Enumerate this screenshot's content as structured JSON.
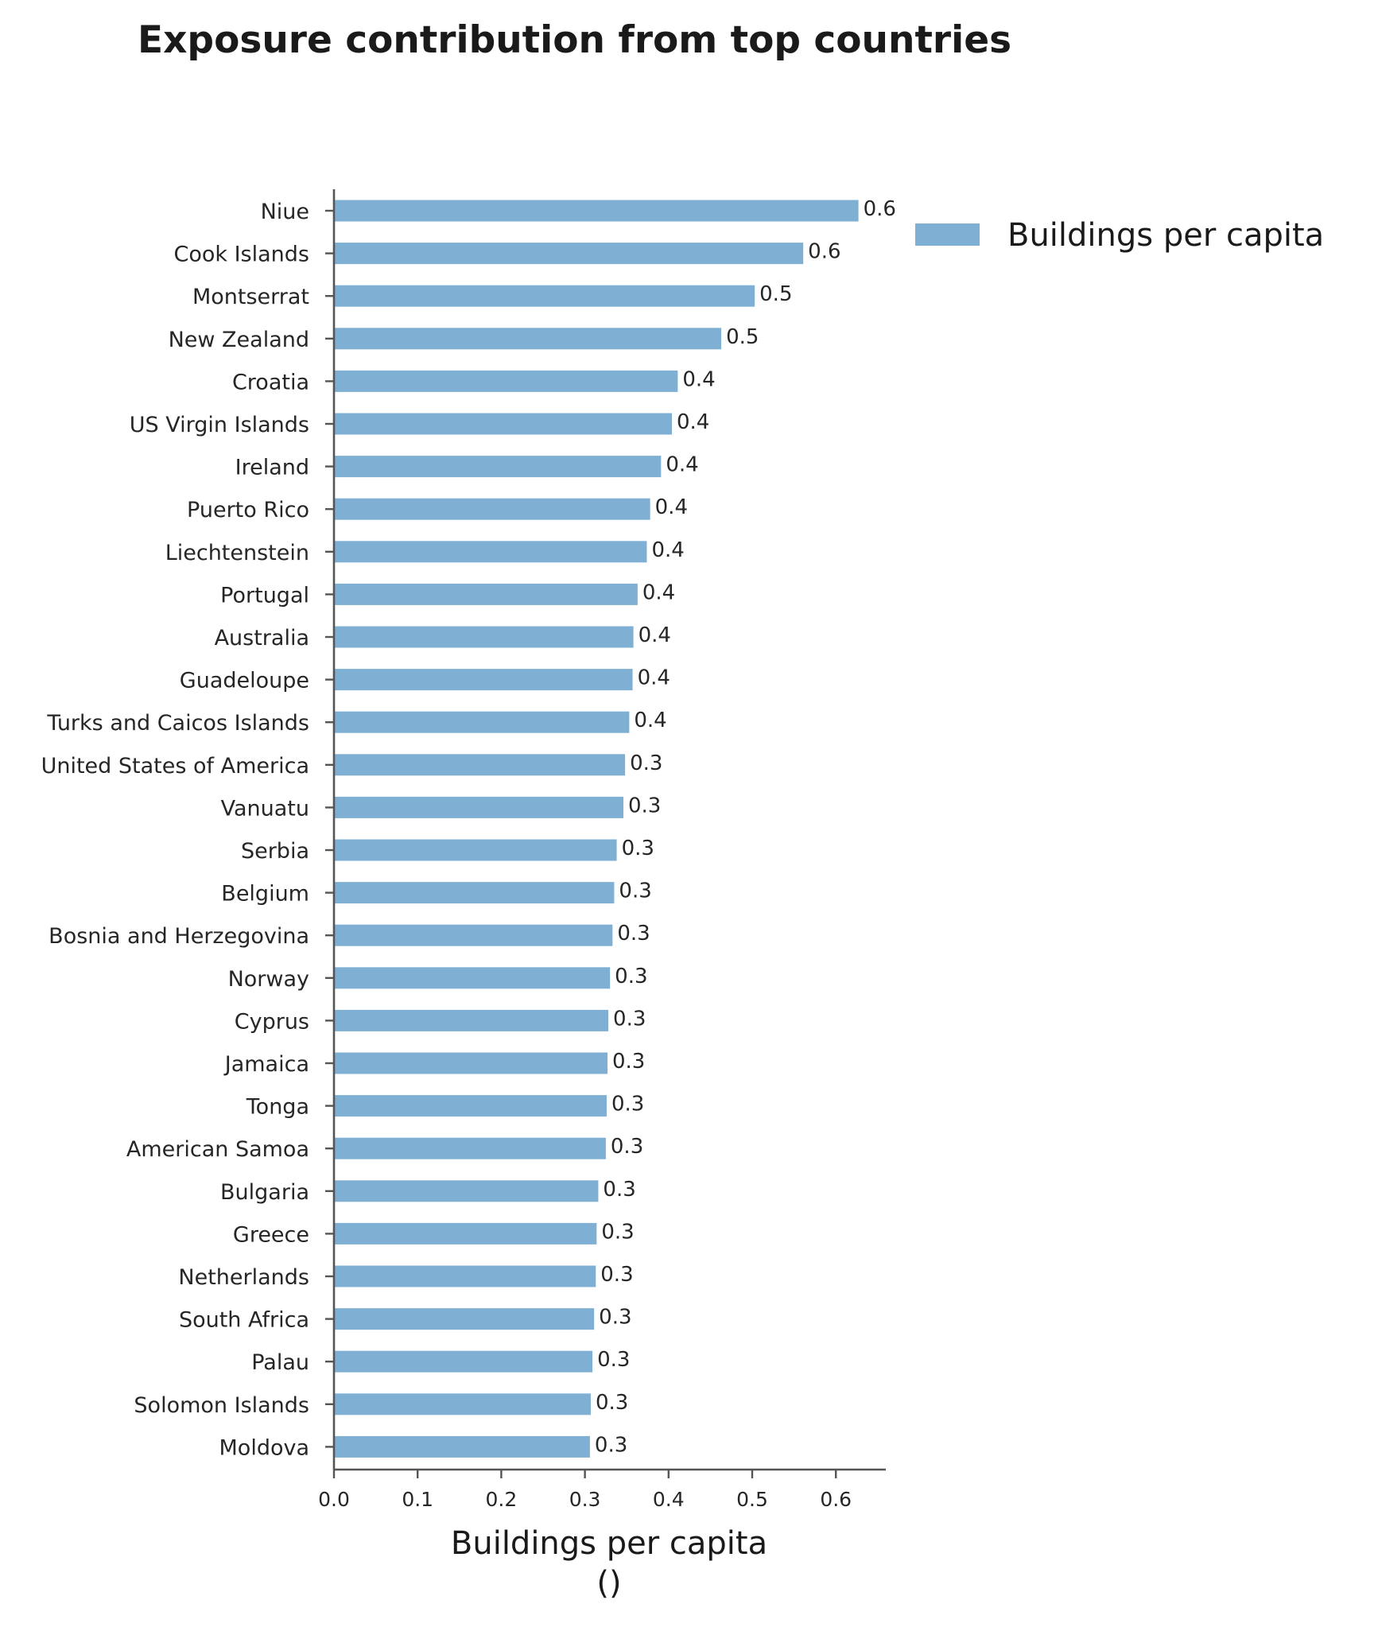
{
  "chart_data": {
    "type": "bar",
    "orientation": "horizontal",
    "title": "Exposure contribution from top countries",
    "xlabel": "Buildings per capita",
    "xlabel_unit": "()",
    "ylabel": "",
    "xlim": [
      0,
      0.66
    ],
    "xticks": [
      "0.0",
      "0.1",
      "0.2",
      "0.3",
      "0.4",
      "0.5",
      "0.6"
    ],
    "legend": {
      "position": "top-right, outside plot",
      "entries": [
        "Buildings per capita"
      ]
    },
    "grid": false,
    "bar_color": "#7fb0d4",
    "categories": [
      "Niue",
      "Cook Islands",
      "Montserrat",
      "New Zealand",
      "Croatia",
      "US Virgin Islands",
      "Ireland",
      "Puerto Rico",
      "Liechtenstein",
      "Portugal",
      "Australia",
      "Guadeloupe",
      "Turks and Caicos Islands",
      "United States of America",
      "Vanuatu",
      "Serbia",
      "Belgium",
      "Bosnia and Herzegovina",
      "Norway",
      "Cyprus",
      "Jamaica",
      "Tonga",
      "American Samoa",
      "Bulgaria",
      "Greece",
      "Netherlands",
      "South Africa",
      "Palau",
      "Solomon Islands",
      "Moldova"
    ],
    "series": [
      {
        "name": "Buildings per capita",
        "values": [
          0.627,
          0.561,
          0.503,
          0.463,
          0.411,
          0.404,
          0.391,
          0.378,
          0.374,
          0.363,
          0.358,
          0.357,
          0.353,
          0.348,
          0.346,
          0.338,
          0.335,
          0.333,
          0.33,
          0.328,
          0.327,
          0.326,
          0.325,
          0.316,
          0.314,
          0.313,
          0.311,
          0.309,
          0.307,
          0.306
        ],
        "labels": [
          "0.6",
          "0.6",
          "0.5",
          "0.5",
          "0.4",
          "0.4",
          "0.4",
          "0.4",
          "0.4",
          "0.4",
          "0.4",
          "0.4",
          "0.4",
          "0.3",
          "0.3",
          "0.3",
          "0.3",
          "0.3",
          "0.3",
          "0.3",
          "0.3",
          "0.3",
          "0.3",
          "0.3",
          "0.3",
          "0.3",
          "0.3",
          "0.3",
          "0.3",
          "0.3"
        ]
      }
    ]
  }
}
